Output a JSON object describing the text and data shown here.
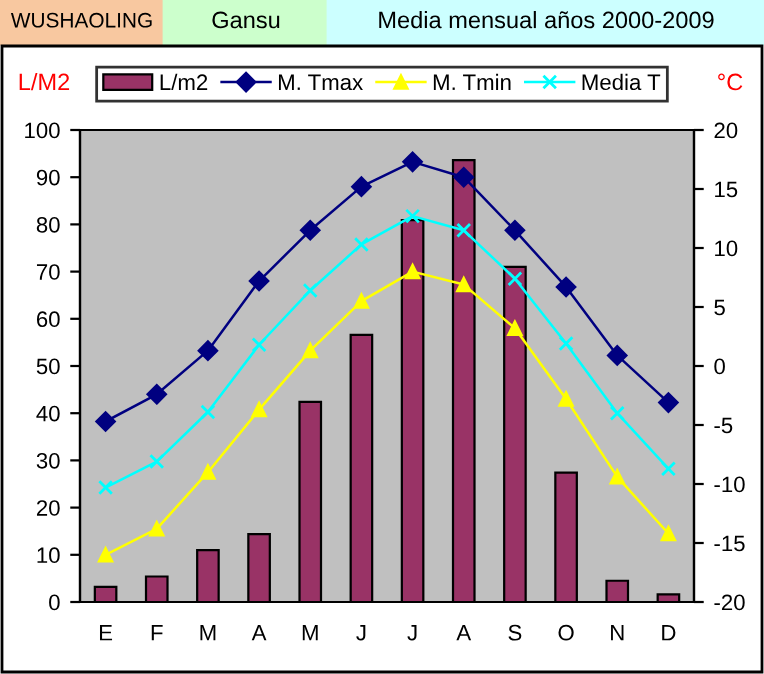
{
  "chart_data": {
    "type": "bar",
    "title": "WUSHAOLING",
    "subtitle": "Gansu",
    "annotations": [
      "Media mensual años 2000-2009"
    ],
    "ylabel": "L/M2",
    "y2label": "°C",
    "categories": [
      "E",
      "F",
      "M",
      "A",
      "M",
      "J",
      "J",
      "A",
      "S",
      "O",
      "N",
      "D"
    ],
    "series": [
      {
        "name": "L/m2",
        "color": "#993366",
        "values": [
          3.2,
          5.4,
          11.0,
          14.4,
          42.4,
          56.6,
          80.9,
          93.6,
          71.0,
          27.4,
          4.5,
          1.6
        ]
      },
      {
        "name": "M. Tmax",
        "type": "line",
        "axis": "y2",
        "color": "#000080",
        "marker": "diamond",
        "values": [
          -4.7,
          -2.4,
          1.3,
          7.2,
          11.5,
          15.2,
          17.3,
          16.0,
          11.5,
          6.7,
          0.9,
          -3.1
        ]
      },
      {
        "name": "M. Tmin",
        "type": "line",
        "axis": "y2",
        "color": "#ffff00",
        "marker": "triangle",
        "values": [
          -16.0,
          -13.8,
          -9.0,
          -3.7,
          1.3,
          5.5,
          8.0,
          6.9,
          3.2,
          -2.8,
          -9.4,
          -14.2
        ]
      },
      {
        "name": "Media T",
        "type": "line",
        "axis": "y2",
        "color": "#00ffff",
        "marker": "cross",
        "values": [
          -10.3,
          -8.1,
          -3.9,
          1.8,
          6.4,
          10.3,
          12.7,
          11.5,
          7.4,
          1.9,
          -4.0,
          -8.7
        ]
      }
    ],
    "ylim": [
      0,
      100
    ],
    "yticks": [
      0,
      10,
      20,
      30,
      40,
      50,
      60,
      70,
      80,
      90,
      100
    ],
    "y2lim": [
      -20,
      20
    ],
    "y2ticks": [
      -20,
      -15,
      -10,
      -5,
      0,
      5,
      10,
      15,
      20
    ],
    "grid": false,
    "legend": "top"
  }
}
